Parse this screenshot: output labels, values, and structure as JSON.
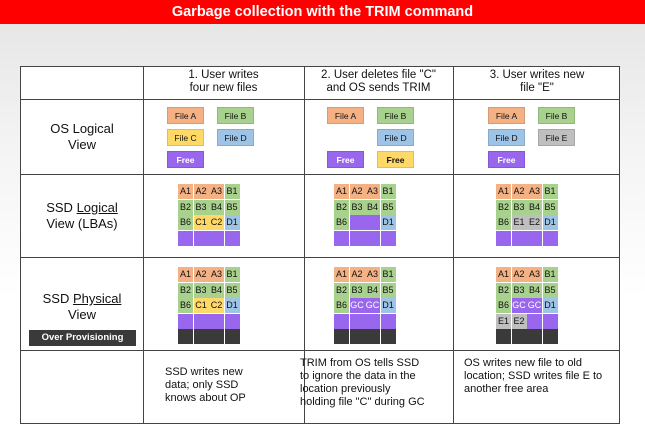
{
  "title": "Garbage collection with the TRIM command",
  "colors": {
    "orange": "#f4b183",
    "green": "#a9d18e",
    "yellow": "#ffd966",
    "blue": "#9dc3e6",
    "purple": "#9966ee",
    "grey": "#bfbfbf",
    "dark": "#3a3a3a"
  },
  "headers": [
    "1. User writes\nfour  new files",
    "2. User deletes file \"C\"\nand OS sends TRIM",
    "3. User writes new\nfile \"E\""
  ],
  "row_labels": {
    "os_logical": "OS Logical\nView",
    "ssd_logical_a": "SSD ",
    "ssd_logical_u": "Logical",
    "ssd_logical_b": "\nView (LBAs)",
    "ssd_physical_a": "SSD ",
    "ssd_physical_u": "Physical",
    "ssd_physical_b": "\nView",
    "over_provisioning": "Over Provisioning"
  },
  "os_views": [
    [
      {
        "label": "File A",
        "color": "orange",
        "pos": "r0c0"
      },
      {
        "label": "File B",
        "color": "green",
        "pos": "r0c1"
      },
      {
        "label": "File C",
        "color": "yellow",
        "pos": "r1c0"
      },
      {
        "label": "File D",
        "color": "blue",
        "pos": "r1c1"
      },
      {
        "label": "Free",
        "color": "purple",
        "pos": "r2c0"
      }
    ],
    [
      {
        "label": "File A",
        "color": "orange",
        "pos": "r0c0"
      },
      {
        "label": "File B",
        "color": "green",
        "pos": "r0c1"
      },
      {
        "label": "File D",
        "color": "blue",
        "pos": "r1c1"
      },
      {
        "label": "Free",
        "color": "purple",
        "pos": "r2c0"
      },
      {
        "label": "Free",
        "color": "yellow",
        "pos": "r2c1"
      }
    ],
    [
      {
        "label": "File A",
        "color": "orange",
        "pos": "r0c0"
      },
      {
        "label": "File B",
        "color": "green",
        "pos": "r0c1"
      },
      {
        "label": "File D",
        "color": "blue",
        "pos": "r1c0"
      },
      {
        "label": "File E",
        "color": "grey",
        "pos": "r1c1"
      },
      {
        "label": "Free",
        "color": "purple",
        "pos": "r2c0"
      }
    ]
  ],
  "ssd_logical": [
    [
      [
        [
          "A1",
          "orange"
        ],
        [
          "A2",
          "orange"
        ],
        [
          "A3",
          "orange"
        ],
        [
          "B1",
          "green"
        ]
      ],
      [
        [
          "B2",
          "green"
        ],
        [
          "B3",
          "green"
        ],
        [
          "B4",
          "green"
        ],
        [
          "B5",
          "green"
        ]
      ],
      [
        [
          "B6",
          "green"
        ],
        [
          "C1",
          "yellow"
        ],
        [
          "C2",
          "yellow"
        ],
        [
          "D1",
          "blue"
        ]
      ],
      [
        [
          "",
          "purple"
        ],
        [
          "",
          "purple"
        ],
        [
          "",
          "purple"
        ],
        [
          "",
          "purple"
        ]
      ]
    ],
    [
      [
        [
          "A1",
          "orange"
        ],
        [
          "A2",
          "orange"
        ],
        [
          "A3",
          "orange"
        ],
        [
          "B1",
          "green"
        ]
      ],
      [
        [
          "B2",
          "green"
        ],
        [
          "B3",
          "green"
        ],
        [
          "B4",
          "green"
        ],
        [
          "B5",
          "green"
        ]
      ],
      [
        [
          "B6",
          "green"
        ],
        [
          "",
          "purple"
        ],
        [
          "",
          "purple"
        ],
        [
          "D1",
          "blue"
        ]
      ],
      [
        [
          "",
          "purple"
        ],
        [
          "",
          "purple"
        ],
        [
          "",
          "purple"
        ],
        [
          "",
          "purple"
        ]
      ]
    ],
    [
      [
        [
          "A1",
          "orange"
        ],
        [
          "A2",
          "orange"
        ],
        [
          "A3",
          "orange"
        ],
        [
          "B1",
          "green"
        ]
      ],
      [
        [
          "B2",
          "green"
        ],
        [
          "B3",
          "green"
        ],
        [
          "B4",
          "green"
        ],
        [
          "B5",
          "green"
        ]
      ],
      [
        [
          "B6",
          "green"
        ],
        [
          "E1",
          "grey"
        ],
        [
          "E2",
          "grey"
        ],
        [
          "D1",
          "blue"
        ]
      ],
      [
        [
          "",
          "purple"
        ],
        [
          "",
          "purple"
        ],
        [
          "",
          "purple"
        ],
        [
          "",
          "purple"
        ]
      ]
    ]
  ],
  "ssd_physical": [
    [
      [
        [
          "A1",
          "orange"
        ],
        [
          "A2",
          "orange"
        ],
        [
          "A3",
          "orange"
        ],
        [
          "B1",
          "green"
        ]
      ],
      [
        [
          "B2",
          "green"
        ],
        [
          "B3",
          "green"
        ],
        [
          "B4",
          "green"
        ],
        [
          "B5",
          "green"
        ]
      ],
      [
        [
          "B6",
          "green"
        ],
        [
          "C1",
          "yellow"
        ],
        [
          "C2",
          "yellow"
        ],
        [
          "D1",
          "blue"
        ]
      ],
      [
        [
          "",
          "purple"
        ],
        [
          "",
          "purple"
        ],
        [
          "",
          "purple"
        ],
        [
          "",
          "purple"
        ]
      ],
      [
        [
          "",
          "dark"
        ],
        [
          "",
          "dark"
        ],
        [
          "",
          "dark"
        ],
        [
          "",
          "dark"
        ]
      ]
    ],
    [
      [
        [
          "A1",
          "orange"
        ],
        [
          "A2",
          "orange"
        ],
        [
          "A3",
          "orange"
        ],
        [
          "B1",
          "green"
        ]
      ],
      [
        [
          "B2",
          "green"
        ],
        [
          "B3",
          "green"
        ],
        [
          "B4",
          "green"
        ],
        [
          "B5",
          "green"
        ]
      ],
      [
        [
          "B6",
          "green"
        ],
        [
          "GC",
          "purple"
        ],
        [
          "GC",
          "purple"
        ],
        [
          "D1",
          "blue"
        ]
      ],
      [
        [
          "",
          "purple"
        ],
        [
          "",
          "purple"
        ],
        [
          "",
          "purple"
        ],
        [
          "",
          "purple"
        ]
      ],
      [
        [
          "",
          "dark"
        ],
        [
          "",
          "dark"
        ],
        [
          "",
          "dark"
        ],
        [
          "",
          "dark"
        ]
      ]
    ],
    [
      [
        [
          "A1",
          "orange"
        ],
        [
          "A2",
          "orange"
        ],
        [
          "A3",
          "orange"
        ],
        [
          "B1",
          "green"
        ]
      ],
      [
        [
          "B2",
          "green"
        ],
        [
          "B3",
          "green"
        ],
        [
          "B4",
          "green"
        ],
        [
          "B5",
          "green"
        ]
      ],
      [
        [
          "B6",
          "green"
        ],
        [
          "GC",
          "purple"
        ],
        [
          "GC",
          "purple"
        ],
        [
          "D1",
          "blue"
        ]
      ],
      [
        [
          "E1",
          "grey"
        ],
        [
          "E2",
          "grey"
        ],
        [
          "",
          "purple"
        ],
        [
          "",
          "purple"
        ]
      ],
      [
        [
          "",
          "dark"
        ],
        [
          "",
          "dark"
        ],
        [
          "",
          "dark"
        ],
        [
          "",
          "dark"
        ]
      ]
    ]
  ],
  "notes": [
    "SSD writes new\ndata; only SSD\nknows about OP",
    "TRIM from OS tells SSD\nto ignore the data in the\nlocation previously\nholding file \"C\" during GC",
    "OS writes new file to old\nlocation; SSD writes file E to\nanother free area"
  ]
}
